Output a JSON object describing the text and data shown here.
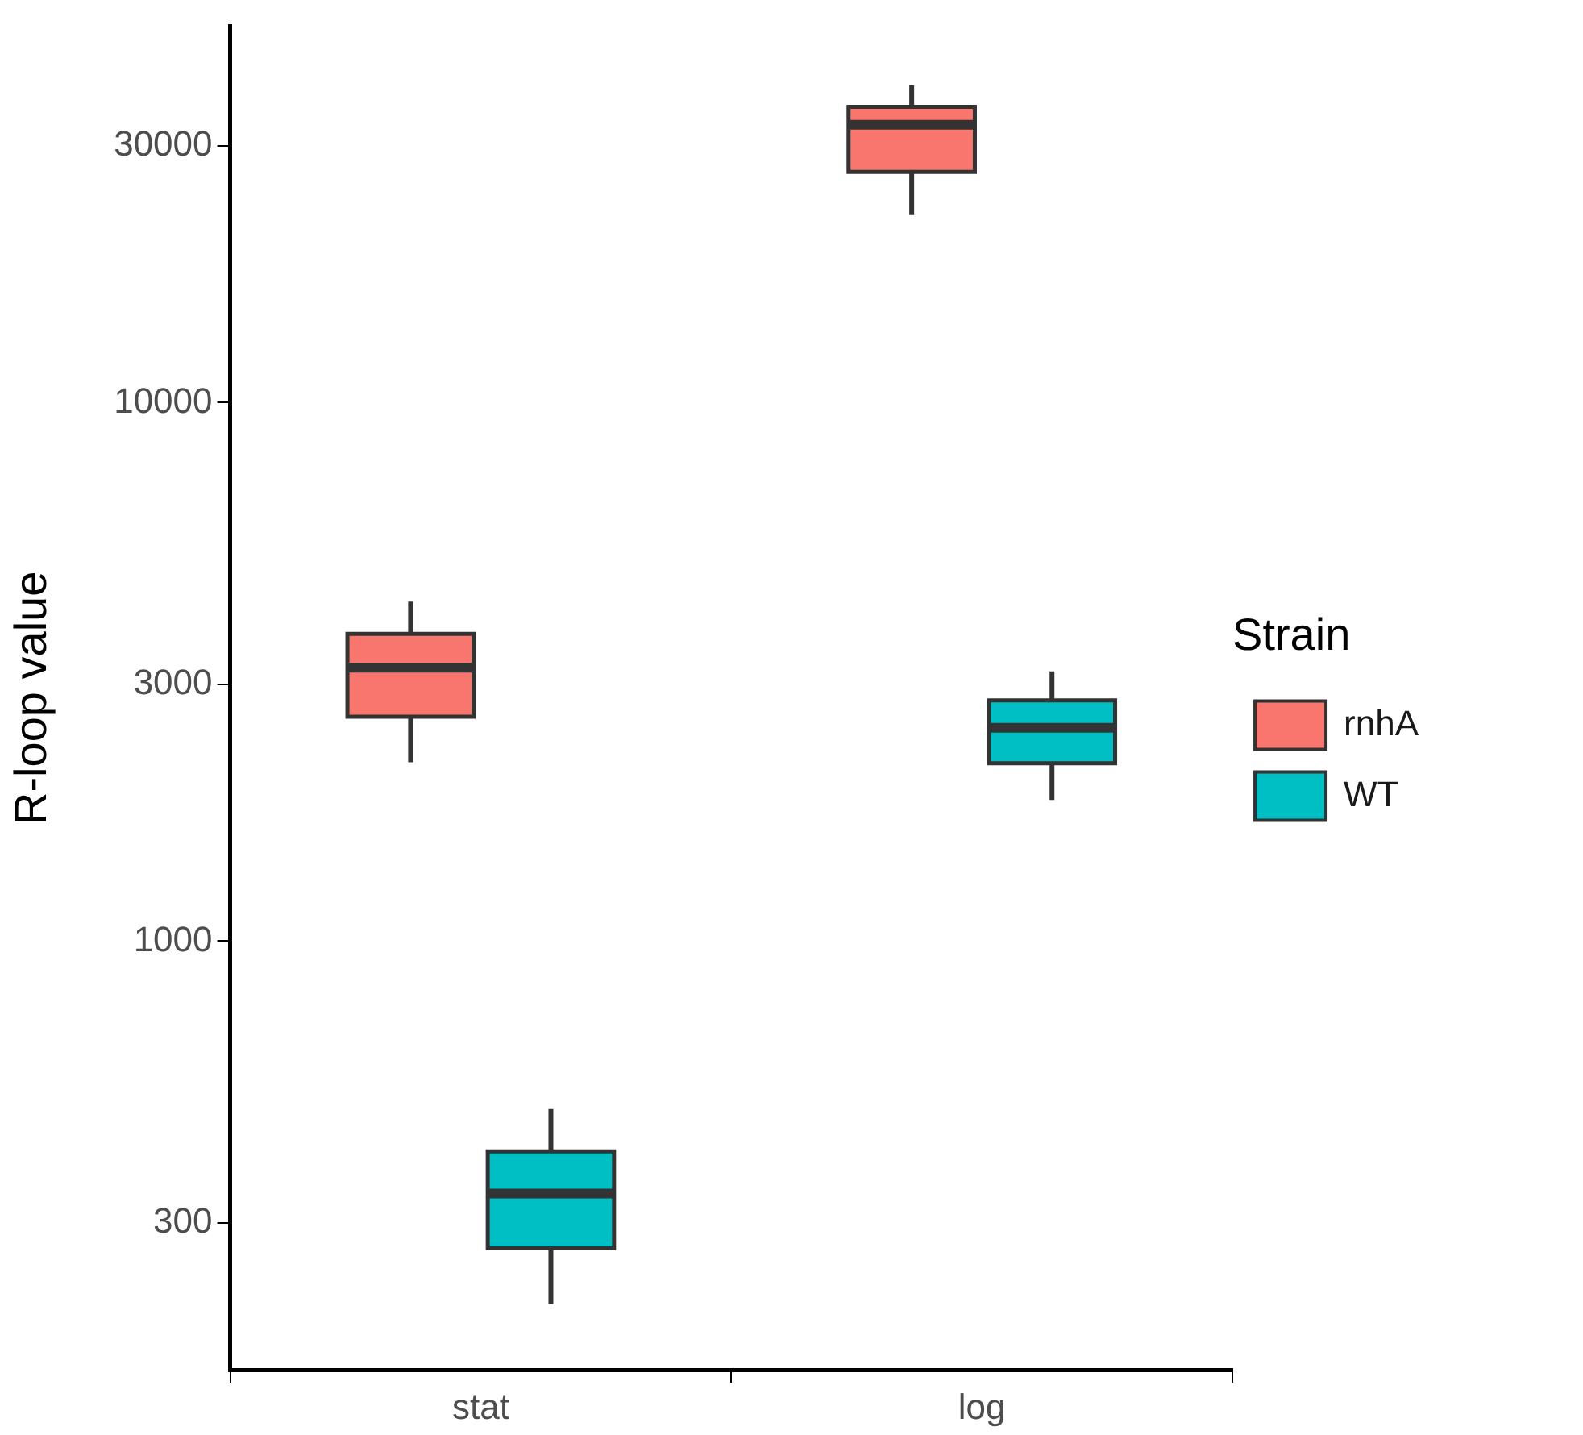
{
  "chart_data": {
    "type": "box",
    "ylabel": "R-loop value",
    "legend_title": "Strain",
    "legend": "right",
    "grid": false,
    "log": true,
    "categories": [
      "stat",
      "log"
    ],
    "ylim": [
      160,
      50000
    ],
    "yticks": [
      300,
      1000,
      3000,
      10000,
      30000
    ],
    "series": [
      {
        "name": "rnhA",
        "color": "#f8766d",
        "boxes": [
          {
            "low": 2150,
            "q1": 2610,
            "median": 3220,
            "q3": 3720,
            "high": 4270
          },
          {
            "low": 22300,
            "q1": 26800,
            "median": 32800,
            "q3": 35400,
            "high": 38800
          }
        ]
      },
      {
        "name": "WT",
        "color": "#00bfc4",
        "boxes": [
          {
            "low": 212,
            "q1": 269,
            "median": 340,
            "q3": 407,
            "high": 488
          },
          {
            "low": 1830,
            "q1": 2140,
            "median": 2490,
            "q3": 2800,
            "high": 3170
          }
        ]
      }
    ]
  }
}
